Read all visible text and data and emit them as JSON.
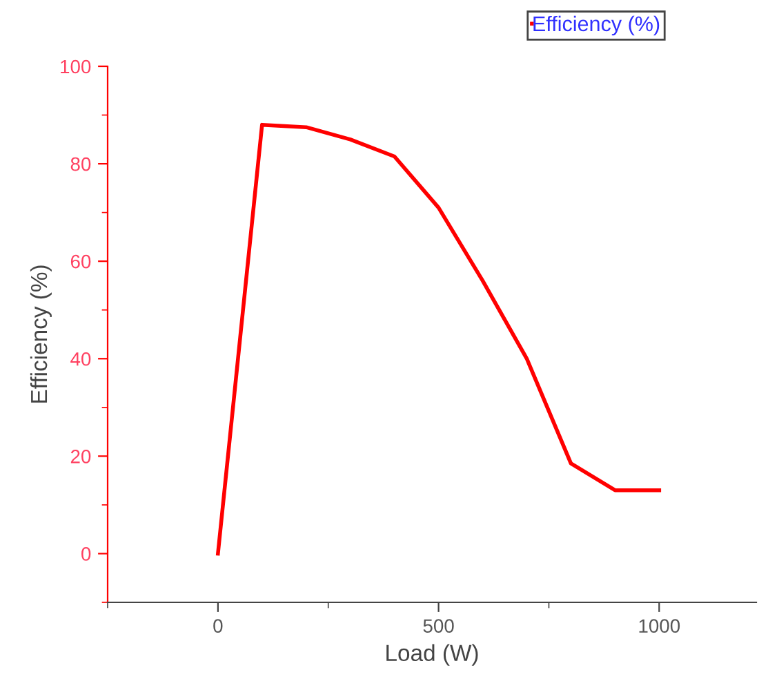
{
  "chart_data": {
    "type": "line",
    "xlabel": "Load (W)",
    "ylabel": "Efficiency (%)",
    "x": [
      0,
      100,
      200,
      300,
      400,
      500,
      600,
      700,
      800,
      900,
      1000
    ],
    "series": [
      {
        "name": "Efficiency (%)",
        "color": "#ff0000",
        "values": [
          0,
          88,
          87.5,
          85,
          81.5,
          71,
          56,
          40,
          18.5,
          13,
          13
        ]
      }
    ],
    "xlim": [
      -250,
      1220
    ],
    "ylim": [
      -10,
      100
    ],
    "xticks": [
      0,
      500,
      1000
    ],
    "yticks": [
      0,
      20,
      40,
      60,
      80,
      100
    ],
    "grid": false,
    "legend": "top right",
    "marker": "none",
    "line_style": "solid"
  }
}
